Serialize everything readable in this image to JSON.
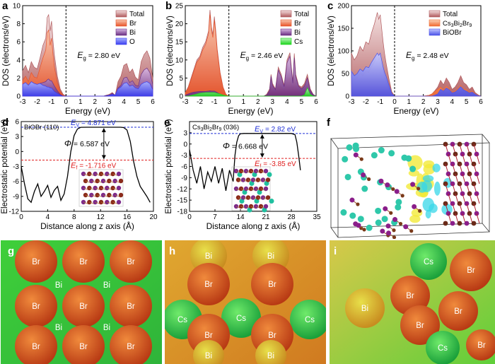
{
  "panel_labels": [
    "a",
    "b",
    "c",
    "d",
    "e",
    "f",
    "g",
    "h",
    "i"
  ],
  "colors": {
    "total": "#b0595c",
    "total_light": "#f3dede",
    "br": "#e8542a",
    "br_light": "#f9c9b0",
    "bi": "#6a2e82",
    "bi_light": "#d9b8e3",
    "o": "#3b3ff0",
    "o_light": "#a7b2ff",
    "cs": "#1fd41f",
    "cs3_total": "#f06a30",
    "bioBr_total": "#4a52e8",
    "ev_line": "#1f2fd6",
    "ef_line": "#e02020"
  },
  "chart_data": [
    {
      "panel": "a",
      "type": "area",
      "xlabel": "Energy (eV)",
      "ylabel": "DOS (electrons/eV)",
      "xlim": [
        -3,
        6
      ],
      "ylim": [
        0,
        10
      ],
      "x_ticks": [
        "-3",
        "-2",
        "-1",
        "0",
        "1",
        "2",
        "3",
        "4",
        "5",
        "6"
      ],
      "y_ticks": [
        "0",
        "2",
        "4",
        "6",
        "8",
        "10"
      ],
      "legend": [
        "Total",
        "Br",
        "Bi",
        "O"
      ],
      "annotation": {
        "label": "E",
        "sub": "g",
        "text": " =  2.80 eV"
      },
      "x": [
        -3,
        -2.8,
        -2.6,
        -2.4,
        -2.2,
        -2,
        -1.8,
        -1.6,
        -1.4,
        -1.3,
        -1.2,
        -1.1,
        -1,
        -0.9,
        -0.8,
        -0.6,
        -0.4,
        -0.2,
        0,
        0.5,
        1,
        1.5,
        2,
        2.2,
        2.4,
        2.6,
        2.8,
        3,
        3.2,
        3.4,
        3.6,
        3.8,
        4,
        4.2,
        4.4,
        4.6,
        4.8,
        5,
        5.2,
        5.4,
        5.6,
        5.8,
        6
      ],
      "series": [
        {
          "name": "Total",
          "values": [
            2.8,
            3.4,
            2.6,
            3.8,
            3.2,
            3.0,
            4.2,
            5.6,
            6.4,
            8.7,
            9.0,
            7.2,
            8.3,
            6.1,
            4.5,
            2.2,
            0.8,
            0.2,
            0,
            0,
            0,
            0,
            0,
            0,
            0,
            0,
            0.1,
            0.2,
            0.4,
            0.1,
            1.6,
            2.2,
            3.4,
            3.6,
            2.6,
            3.0,
            2.1,
            1.8,
            3.8,
            4.6,
            5.0,
            4.2,
            2.0
          ]
        },
        {
          "name": "Br",
          "values": [
            1.7,
            2.2,
            1.6,
            2.6,
            2.1,
            2.0,
            3.1,
            4.2,
            5.1,
            7.0,
            7.3,
            5.6,
            6.4,
            4.6,
            3.2,
            1.5,
            0.5,
            0.1,
            0,
            0,
            0,
            0,
            0,
            0,
            0,
            0,
            0,
            0.1,
            0.1,
            0,
            0.8,
            1.1,
            1.4,
            1.6,
            1.2,
            1.3,
            0.9,
            0.8,
            1.4,
            1.7,
            1.9,
            1.6,
            0.7
          ]
        },
        {
          "name": "Bi",
          "values": [
            1.2,
            1.4,
            1.1,
            1.5,
            1.3,
            1.2,
            1.4,
            1.5,
            1.6,
            1.8,
            1.9,
            1.7,
            1.7,
            1.4,
            1.1,
            0.6,
            0.2,
            0,
            0,
            0,
            0,
            0,
            0,
            0,
            0,
            0,
            0.1,
            0.1,
            0.3,
            0.1,
            0.9,
            1.2,
            2.0,
            2.1,
            1.5,
            1.7,
            1.2,
            1.1,
            2.4,
            2.9,
            3.1,
            2.6,
            1.3
          ]
        },
        {
          "name": "O",
          "values": [
            1.3,
            1.5,
            1.2,
            1.6,
            1.4,
            1.3,
            1.4,
            1.2,
            1.1,
            1.0,
            1.0,
            0.9,
            0.9,
            0.7,
            0.5,
            0.3,
            0.1,
            0,
            0,
            0,
            0,
            0,
            0,
            0,
            0,
            0,
            0,
            0.1,
            0.2,
            0.1,
            0.8,
            1.0,
            1.4,
            1.5,
            1.1,
            1.2,
            0.9,
            0.8,
            1.3,
            1.5,
            1.6,
            1.4,
            0.7
          ]
        }
      ]
    },
    {
      "panel": "b",
      "type": "area",
      "xlabel": "Energy (eV)",
      "ylabel": "DOS (electrons/eV)",
      "xlim": [
        -3,
        6
      ],
      "ylim": [
        0,
        25
      ],
      "x_ticks": [
        "-3",
        "-2",
        "-1",
        "0",
        "1",
        "2",
        "3",
        "4",
        "5",
        "6"
      ],
      "y_ticks": [
        "0",
        "5",
        "10",
        "15",
        "20",
        "25"
      ],
      "legend": [
        "Total",
        "Br",
        "Bi",
        "Cs"
      ],
      "annotation": {
        "label": "E",
        "sub": "g",
        "text": " = 2.46 eV"
      },
      "x": [
        -3,
        -2.8,
        -2.6,
        -2.4,
        -2.2,
        -2,
        -1.8,
        -1.6,
        -1.4,
        -1.3,
        -1.2,
        -1.1,
        -1,
        -0.9,
        -0.8,
        -0.6,
        -0.4,
        -0.2,
        0,
        0.5,
        1,
        1.5,
        2,
        2.2,
        2.4,
        2.6,
        2.8,
        2.9,
        3,
        3.2,
        3.4,
        3.6,
        3.8,
        4,
        4.2,
        4.4,
        4.5,
        4.6,
        4.8,
        5,
        5.2,
        5.4,
        5.6,
        5.8,
        6
      ],
      "series": [
        {
          "name": "Total",
          "values": [
            1.0,
            2.5,
            5.0,
            7.5,
            10.0,
            11.0,
            13.5,
            15.0,
            18.0,
            23.8,
            19.0,
            17.0,
            22.0,
            18.0,
            13.0,
            6.5,
            2.5,
            0.5,
            0,
            0,
            0,
            0,
            0,
            0,
            0,
            0.5,
            2.0,
            6.0,
            3.5,
            2.0,
            8.0,
            6.0,
            3.0,
            10.0,
            12.0,
            4.0,
            11.8,
            6.0,
            3.0,
            2.5,
            3.5,
            6.0,
            2.0,
            0.5,
            0
          ]
        },
        {
          "name": "Br",
          "values": [
            0.9,
            2.2,
            4.6,
            7.0,
            9.4,
            10.4,
            12.8,
            14.3,
            17.2,
            22.6,
            18.1,
            16.2,
            21.0,
            17.1,
            12.3,
            6.1,
            2.3,
            0.4,
            0,
            0,
            0,
            0,
            0,
            0,
            0,
            0.2,
            0.9,
            2.6,
            1.5,
            0.9,
            3.4,
            2.6,
            1.3,
            4.3,
            5.1,
            1.7,
            5.0,
            2.6,
            1.3,
            1.0,
            1.4,
            2.5,
            0.8,
            0.2,
            0
          ]
        },
        {
          "name": "Bi",
          "values": [
            0.3,
            0.6,
            0.9,
            1.1,
            1.2,
            1.3,
            1.3,
            1.3,
            1.4,
            1.5,
            1.4,
            1.4,
            1.4,
            1.2,
            1.0,
            0.5,
            0.2,
            0,
            0,
            0,
            0,
            0,
            0,
            0,
            0,
            0.3,
            1.5,
            5.5,
            3.0,
            1.8,
            7.2,
            5.4,
            2.6,
            9.2,
            11.0,
            3.6,
            10.6,
            5.4,
            2.7,
            2.0,
            2.8,
            5.0,
            1.6,
            0.4,
            0
          ]
        },
        {
          "name": "Cs",
          "values": [
            0,
            0,
            0.2,
            0.4,
            0.6,
            0.8,
            0.9,
            1.0,
            1.0,
            1.0,
            1.0,
            1.0,
            1.0,
            0.9,
            0.8,
            0.6,
            0.3,
            0.1,
            0,
            0,
            0,
            0,
            0,
            0,
            0,
            0,
            0,
            0,
            0,
            0,
            0,
            0,
            0,
            0,
            0,
            0,
            0,
            0,
            0,
            0,
            0.3,
            2.3,
            0.5,
            0,
            0
          ]
        }
      ]
    },
    {
      "panel": "c",
      "type": "area",
      "xlabel": "Energy (eV)",
      "ylabel": "DOS (electrons/eV)",
      "xlim": [
        -3,
        6
      ],
      "ylim": [
        0,
        200
      ],
      "x_ticks": [
        "-3",
        "-2",
        "-1",
        "0",
        "1",
        "2",
        "3",
        "4",
        "5",
        "6"
      ],
      "y_ticks": [
        "0",
        "50",
        "100",
        "150",
        "200"
      ],
      "legend": [
        "Total",
        "Cs3Bi2Br9",
        "BiOBr"
      ],
      "legend_display": [
        {
          "t": "Total"
        },
        {
          "t": "Cs",
          "s": "3",
          "t2": "Bi",
          "s2": "2",
          "t3": "Br",
          "s3": "9"
        },
        {
          "t": "BiOBr"
        }
      ],
      "annotation": {
        "label": "E",
        "sub": "g",
        "text": " =  2.48 eV"
      },
      "x": [
        -3,
        -2.8,
        -2.6,
        -2.4,
        -2.2,
        -2,
        -1.8,
        -1.6,
        -1.4,
        -1.2,
        -1.1,
        -1,
        -0.9,
        -0.8,
        -0.7,
        -0.6,
        -0.4,
        -0.2,
        0,
        0.5,
        1,
        1.5,
        2,
        2.4,
        2.6,
        2.8,
        3,
        3.2,
        3.4,
        3.6,
        3.8,
        4,
        4.2,
        4.4,
        4.6,
        4.8,
        5,
        5.2,
        5.4,
        5.6,
        5.8,
        6
      ],
      "series": [
        {
          "name": "Total",
          "values": [
            95,
            80,
            90,
            110,
            100,
            120,
            115,
            140,
            160,
            185,
            170,
            180,
            150,
            120,
            95,
            75,
            40,
            10,
            0,
            0,
            0,
            0,
            0,
            2,
            5,
            12,
            20,
            35,
            25,
            40,
            30,
            15,
            20,
            30,
            45,
            30,
            25,
            15,
            20,
            8,
            3,
            0
          ]
        },
        {
          "name": "Cs3Bi2Br9",
          "values": [
            40,
            35,
            40,
            50,
            45,
            55,
            52,
            65,
            75,
            90,
            80,
            85,
            70,
            55,
            42,
            30,
            15,
            4,
            0,
            0,
            0,
            0,
            0,
            2,
            5,
            10,
            15,
            20,
            14,
            22,
            16,
            8,
            11,
            16,
            24,
            16,
            14,
            8,
            11,
            4,
            2,
            0
          ]
        },
        {
          "name": "BiOBr",
          "values": [
            55,
            45,
            50,
            60,
            55,
            65,
            63,
            75,
            85,
            95,
            90,
            95,
            80,
            65,
            53,
            45,
            25,
            6,
            0,
            0,
            0,
            0,
            0,
            0,
            0,
            2,
            5,
            15,
            11,
            18,
            14,
            7,
            9,
            14,
            21,
            14,
            11,
            7,
            9,
            4,
            1,
            0
          ]
        }
      ]
    },
    {
      "panel": "d",
      "type": "line",
      "xlabel": "Distance along z axis (Å)",
      "ylabel": "Electrostatic potential (eV)",
      "xlim": [
        0,
        20
      ],
      "ylim": [
        -12,
        6
      ],
      "x_ticks": [
        "0",
        "4",
        "8",
        "12",
        "16",
        "20"
      ],
      "y_ticks": [
        "6",
        "3",
        "0",
        "-3",
        "-6",
        "-9",
        "-12"
      ],
      "material_label": "BiOBr (110)",
      "ev_text": "Eᵥ  =  4.871 eV",
      "ev_label": "E",
      "ev_sub": "V",
      "ev_value": "=  4.871 eV",
      "ev": 4.871,
      "ef_label": "E",
      "ef_sub": "f",
      "ef_value": "=  -1.716 eV",
      "ef": -1.716,
      "phi_text": "= 6.587 eV",
      "phi": 6.587,
      "x": [
        0,
        0.5,
        1,
        1.5,
        2,
        2.5,
        3,
        3.5,
        4,
        4.5,
        5,
        5.5,
        6,
        6.5,
        7,
        7.5,
        8,
        8.5,
        9,
        10,
        11,
        12,
        13,
        14,
        15,
        15.5,
        16,
        16.5,
        17,
        17.5,
        18,
        18.5,
        19,
        19.5
      ],
      "y": [
        -3.0,
        -6.5,
        -9.5,
        -10.2,
        -8.0,
        -6.5,
        -9.0,
        -8.0,
        -6.8,
        -9.2,
        -7.8,
        -7.0,
        -9.8,
        -8.5,
        -5.0,
        0.0,
        3.2,
        4.5,
        4.85,
        4.87,
        4.87,
        4.87,
        4.87,
        4.87,
        4.87,
        4.8,
        4.3,
        2.0,
        -2.0,
        -5.0,
        -7.0,
        -8.0,
        -9.0,
        -10.2
      ]
    },
    {
      "panel": "e",
      "type": "line",
      "xlabel": "Distance along z axis (Å)",
      "ylabel": "Electrostatic potential (eV)",
      "xlim": [
        0,
        35
      ],
      "ylim": [
        -18,
        6
      ],
      "x_ticks": [
        "0",
        "7",
        "14",
        "21",
        "28",
        "35"
      ],
      "y_ticks": [
        "3",
        "0",
        "-3",
        "-6",
        "-9",
        "-12",
        "-15",
        "-18"
      ],
      "material_label_parts": [
        {
          "t": "Cs"
        },
        {
          "s": "3"
        },
        {
          "t": "Bi"
        },
        {
          "s": "2"
        },
        {
          "t": "Br"
        },
        {
          "s": "9"
        },
        {
          "t": " (036)"
        }
      ],
      "material_label": "Cs3Bi2Br9 (036)",
      "ev_label": "E",
      "ev_sub": "V",
      "ev_value": "=  2.82 eV",
      "ev": 2.82,
      "ef_label": "E",
      "ef_sub": "f",
      "ef_value": "=  -3.85 eV",
      "ef": -3.85,
      "phi_text": "= 6.668 eV",
      "phi": 6.668,
      "x": [
        0,
        1,
        2,
        3,
        4,
        5,
        6,
        7,
        8,
        9,
        10,
        11,
        12,
        12.5,
        13,
        13.5,
        14,
        15,
        17,
        20,
        24,
        27,
        28,
        29,
        29.5,
        30,
        30.5
      ],
      "y": [
        -1.5,
        -7.0,
        -10.5,
        -6.0,
        -12.0,
        -7.5,
        -10.0,
        -6.0,
        -10.5,
        -6.5,
        -12.5,
        -7.0,
        -10.0,
        -3.0,
        0.5,
        2.2,
        2.75,
        2.82,
        2.82,
        2.82,
        2.82,
        2.82,
        2.82,
        2.5,
        0.5,
        -3.0,
        -7.0
      ]
    }
  ],
  "panel_g": {
    "labels": [
      "Br",
      "Br",
      "Br",
      "Bi",
      "Bi",
      "Br",
      "Br",
      "Br",
      "Bi",
      "Bi",
      "Br",
      "Br",
      "Br"
    ]
  },
  "panel_h": {
    "labels": [
      "Bi",
      "Bi",
      "Br",
      "Br",
      "Cs",
      "Cs",
      "Cs",
      "Br",
      "Br",
      "Bi",
      "Bi"
    ]
  },
  "panel_i": {
    "labels": [
      "Cs",
      "Br",
      "Br",
      "Br",
      "Bi",
      "Br",
      "Cs",
      "Br"
    ]
  }
}
